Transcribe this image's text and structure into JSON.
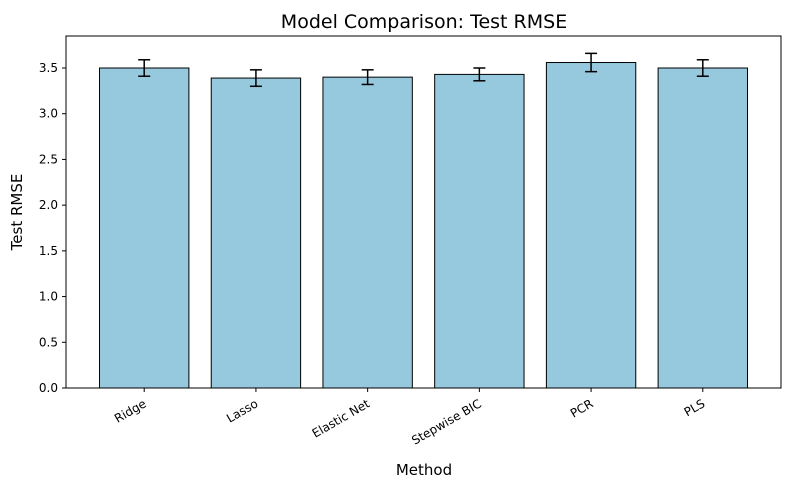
{
  "chart_data": {
    "type": "bar",
    "title": "Model Comparison: Test RMSE",
    "xlabel": "Method",
    "ylabel": "Test RMSE",
    "categories": [
      "Ridge",
      "Lasso",
      "Elastic Net",
      "Stepwise BIC",
      "PCR",
      "PLS"
    ],
    "values": [
      3.5,
      3.39,
      3.4,
      3.43,
      3.56,
      3.5
    ],
    "errors": [
      0.09,
      0.09,
      0.08,
      0.07,
      0.1,
      0.09
    ],
    "ylim": [
      0,
      3.85
    ],
    "yticks": [
      0.0,
      0.5,
      1.0,
      1.5,
      2.0,
      2.5,
      3.0,
      3.5
    ],
    "ytick_labels": [
      "0.0",
      "0.5",
      "1.0",
      "1.5",
      "2.0",
      "2.5",
      "3.0",
      "3.5"
    ],
    "grid": false,
    "bar_color": "#96c9de",
    "edge_color": "#000000"
  }
}
